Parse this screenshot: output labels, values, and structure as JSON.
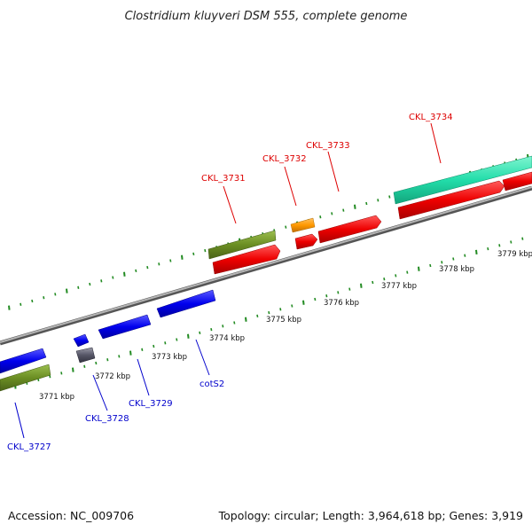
{
  "title": "Clostridium kluyveri DSM 555, complete genome",
  "footer": {
    "accession": "Accession: NC_009706",
    "summary": "Topology: circular; Length: 3,964,618 bp; Genes: 3,919"
  },
  "colors": {
    "plus_strand_label": "#dd0000",
    "minus_strand_label": "#0000cc",
    "plus_gene": "#ee0000",
    "minus_gene": "#0000ee",
    "green_gene": "#6b8e23",
    "orange_gene": "#ff9900",
    "teal_gene": "#22ddaa",
    "gray_gene": "#555566",
    "tick": "#228B22",
    "backbone": "#888888"
  },
  "axis": {
    "unit": "kbp",
    "labels": [
      {
        "text": "3771 kbp"
      },
      {
        "text": "3772 kbp"
      },
      {
        "text": "3773 kbp"
      },
      {
        "text": "3774 kbp"
      },
      {
        "text": "3775 kbp"
      },
      {
        "text": "3776 kbp"
      },
      {
        "text": "3777 kbp"
      },
      {
        "text": "3778 kbp"
      },
      {
        "text": "3779 kbp"
      }
    ]
  },
  "genes": {
    "plus_labels": [
      "CKL_3731",
      "CKL_3732",
      "CKL_3733",
      "CKL_3734"
    ],
    "minus_labels": [
      "CKL_3727",
      "CKL_3728",
      "CKL_3729",
      "cotS2"
    ]
  }
}
